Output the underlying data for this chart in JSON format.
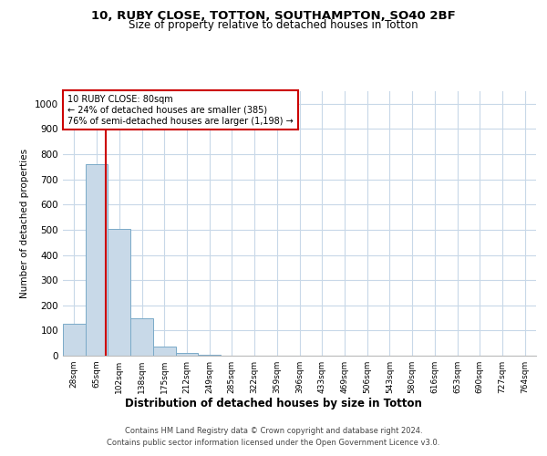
{
  "title1": "10, RUBY CLOSE, TOTTON, SOUTHAMPTON, SO40 2BF",
  "title2": "Size of property relative to detached houses in Totton",
  "xlabel": "Distribution of detached houses by size in Totton",
  "ylabel": "Number of detached properties",
  "bin_labels": [
    "28sqm",
    "65sqm",
    "102sqm",
    "138sqm",
    "175sqm",
    "212sqm",
    "249sqm",
    "285sqm",
    "322sqm",
    "359sqm",
    "396sqm",
    "433sqm",
    "469sqm",
    "506sqm",
    "543sqm",
    "580sqm",
    "616sqm",
    "653sqm",
    "690sqm",
    "727sqm",
    "764sqm"
  ],
  "bar_values": [
    125,
    760,
    505,
    150,
    35,
    10,
    5,
    1,
    0,
    0,
    0,
    0,
    0,
    0,
    0,
    0,
    0,
    0,
    0,
    0,
    0
  ],
  "bar_color": "#c8d9e8",
  "bar_edge_color": "#7aaac8",
  "ylim": [
    0,
    1050
  ],
  "yticks": [
    0,
    100,
    200,
    300,
    400,
    500,
    600,
    700,
    800,
    900,
    1000
  ],
  "red_line_x": 1.42,
  "annotation_line1": "10 RUBY CLOSE: 80sqm",
  "annotation_line2": "← 24% of detached houses are smaller (385)",
  "annotation_line3": "76% of semi-detached houses are larger (1,198) →",
  "annotation_box_color": "#ffffff",
  "annotation_border_color": "#cc0000",
  "footer1": "Contains HM Land Registry data © Crown copyright and database right 2024.",
  "footer2": "Contains public sector information licensed under the Open Government Licence v3.0.",
  "background_color": "#ffffff",
  "grid_color": "#c8d8e8"
}
